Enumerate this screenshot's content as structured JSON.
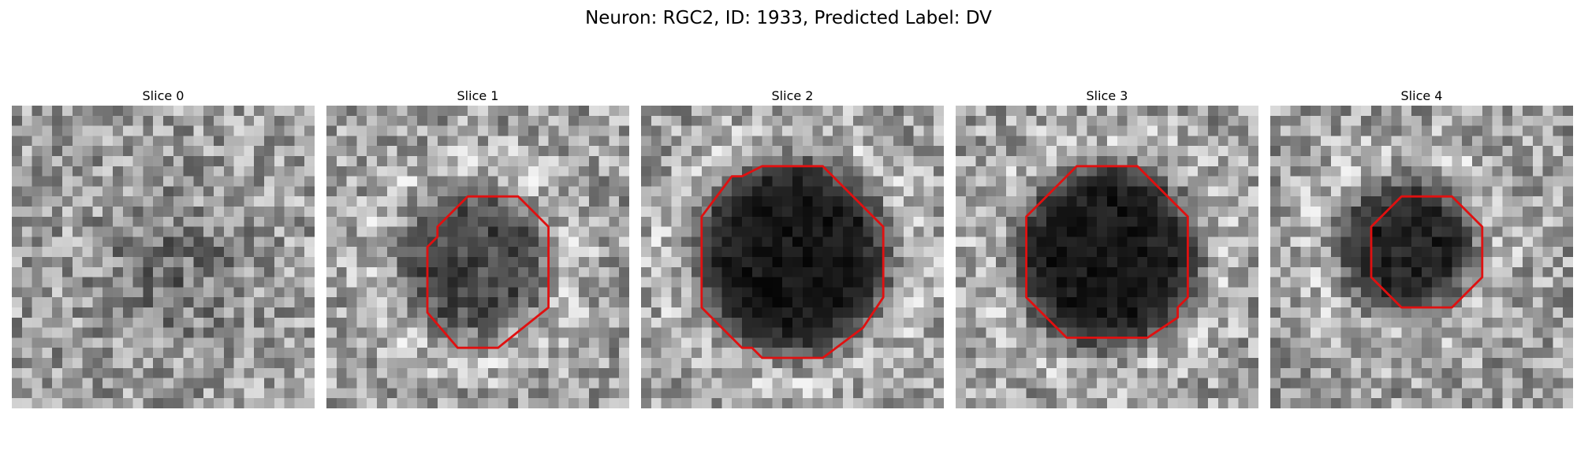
{
  "figure": {
    "title": "Neuron: RGC2, ID: 1933, Predicted Label: DV",
    "grid_size": 30,
    "contour_color": "#e01010"
  },
  "slices": [
    {
      "label": "Slice 0",
      "blob": null,
      "contour": null
    },
    {
      "label": "Slice 1",
      "blob": {
        "cx": 14.5,
        "cy": 15.5,
        "r": 7,
        "darkness": 0.55
      },
      "contour": [
        [
          14,
          9
        ],
        [
          19,
          9
        ],
        [
          22,
          12
        ],
        [
          22,
          20
        ],
        [
          17,
          24
        ],
        [
          13,
          24
        ],
        [
          10,
          20.5
        ],
        [
          10,
          14
        ],
        [
          11,
          13
        ],
        [
          11,
          12
        ]
      ]
    },
    {
      "label": "Slice 2",
      "blob": {
        "cx": 15,
        "cy": 15,
        "r": 9.5,
        "darkness": 0.85
      },
      "contour": [
        [
          10,
          7
        ],
        [
          12,
          6
        ],
        [
          18,
          6
        ],
        [
          22,
          10
        ],
        [
          24,
          12
        ],
        [
          24,
          19
        ],
        [
          22,
          22
        ],
        [
          18,
          25
        ],
        [
          12,
          25
        ],
        [
          11,
          24
        ],
        [
          10,
          24
        ],
        [
          6,
          20
        ],
        [
          6,
          11
        ],
        [
          9,
          7
        ]
      ]
    },
    {
      "label": "Slice 3",
      "blob": {
        "cx": 15,
        "cy": 15,
        "r": 9,
        "darkness": 0.85
      },
      "contour": [
        [
          12,
          6
        ],
        [
          18,
          6
        ],
        [
          23,
          11
        ],
        [
          23,
          19
        ],
        [
          22,
          20
        ],
        [
          22,
          21
        ],
        [
          19,
          23
        ],
        [
          11,
          23
        ],
        [
          7,
          19
        ],
        [
          7,
          11
        ]
      ]
    },
    {
      "label": "Slice 4",
      "blob": {
        "cx": 13.5,
        "cy": 14,
        "r": 6.5,
        "darkness": 0.8
      },
      "contour": [
        [
          13,
          9
        ],
        [
          18,
          9
        ],
        [
          21,
          12
        ],
        [
          21,
          17
        ],
        [
          18,
          20
        ],
        [
          13,
          20
        ],
        [
          10,
          17
        ],
        [
          10,
          12
        ]
      ]
    }
  ]
}
